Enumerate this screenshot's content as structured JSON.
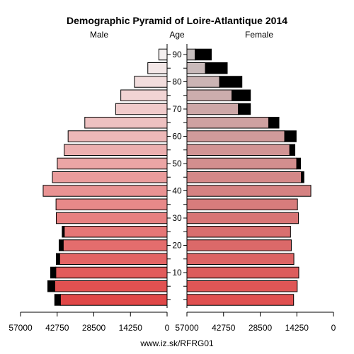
{
  "chart_data": {
    "type": "population-pyramid",
    "title": "Demographic Pyramid of Loire-Atlantique 2014",
    "left_label": "Male",
    "center_label": "Age",
    "right_label": "Female",
    "footer": "www.iz.sk/RFRG01",
    "x_max": 57000,
    "x_ticks": [
      57000,
      42750,
      28500,
      14250,
      0
    ],
    "x_tick_labels": [
      "57000",
      "42750",
      "28500",
      "14250",
      "0"
    ],
    "age_tick_labels": [
      "10",
      "20",
      "30",
      "40",
      "50",
      "60",
      "70",
      "80",
      "90"
    ],
    "age_groups": [
      "0-4",
      "5-9",
      "10-14",
      "15-19",
      "20-24",
      "25-29",
      "30-34",
      "35-39",
      "40-44",
      "45-49",
      "50-54",
      "55-59",
      "60-64",
      "65-69",
      "70-74",
      "75-79",
      "80-84",
      "85-89",
      "90+"
    ],
    "male": {
      "fill": [
        41500,
        43700,
        43300,
        41800,
        40400,
        40000,
        43100,
        43200,
        48200,
        44600,
        42700,
        40000,
        38500,
        32000,
        20000,
        18000,
        12700,
        7500,
        3200
      ],
      "excess": [
        2200,
        2700,
        2000,
        1300,
        1600,
        800,
        0,
        0,
        0,
        0,
        0,
        0,
        0,
        0,
        0,
        0,
        0,
        0,
        0
      ]
    },
    "female": {
      "fill": [
        41500,
        42900,
        43500,
        41600,
        40600,
        40300,
        43400,
        43000,
        48200,
        44500,
        42700,
        40000,
        38000,
        31800,
        20000,
        17500,
        12700,
        7200,
        3200
      ],
      "excess": [
        0,
        0,
        0,
        0,
        0,
        0,
        0,
        0,
        0,
        1000,
        1500,
        2000,
        4500,
        4000,
        4700,
        7200,
        8700,
        8500,
        6300
      ]
    },
    "colors": {
      "excess": "#000000",
      "male_bottom": "#e04848",
      "male_top": "#f4f0f0",
      "female_bottom": "#e05050",
      "female_top": "#c8c0c0"
    }
  }
}
